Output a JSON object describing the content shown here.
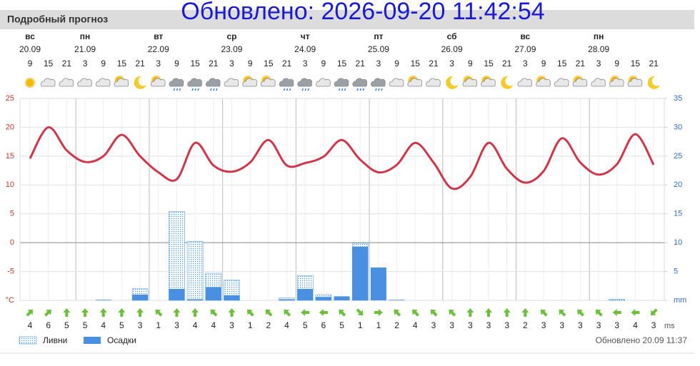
{
  "header": {
    "title": "Подробный прогноз",
    "updated_overlay": "Обновлено: 2026-09-20 11:42:54"
  },
  "days": [
    {
      "name": "вс",
      "date": "20.09"
    },
    {
      "name": "пн",
      "date": "21.09"
    },
    {
      "name": "вт",
      "date": "22.09"
    },
    {
      "name": "ср",
      "date": "23.09"
    },
    {
      "name": "чт",
      "date": "24.09"
    },
    {
      "name": "пт",
      "date": "25.09"
    },
    {
      "name": "сб",
      "date": "26.09"
    },
    {
      "name": "вс",
      "date": "27.09"
    },
    {
      "name": "пн",
      "date": "28.09"
    }
  ],
  "chart_data": {
    "type": "forecast",
    "categories": [
      9,
      15,
      21,
      3,
      9,
      15,
      21,
      3,
      9,
      15,
      21,
      3,
      9,
      15,
      21,
      3,
      9,
      15,
      21,
      3,
      9,
      15,
      21,
      3,
      9,
      15,
      21,
      3,
      9,
      15,
      21,
      3,
      9,
      15,
      21
    ],
    "temperature": {
      "color": "#d0364a",
      "values": [
        14.6,
        20,
        16,
        14,
        15,
        18.7,
        15,
        12.2,
        11,
        17.3,
        13.4,
        12.3,
        13.9,
        17.8,
        13.4,
        13.8,
        14.9,
        17.8,
        14.4,
        12.2,
        13.5,
        17.3,
        13.9,
        9.4,
        11.4,
        17.3,
        12.8,
        10.4,
        12.4,
        18.1,
        13.9,
        11.8,
        13.6,
        18.8,
        13.5
      ]
    },
    "series": [
      {
        "name": "Ливни",
        "color": "#3d8fe0",
        "axis": "y2",
        "values": [
          0,
          0,
          0,
          0,
          0,
          0,
          2.0,
          0,
          15.4,
          10.2,
          4.7,
          3.5,
          0,
          0,
          0.4,
          4.3,
          1.0,
          0,
          9.9,
          0,
          0,
          0,
          0,
          0,
          0,
          0,
          0,
          0,
          0,
          0,
          0,
          0,
          0.2,
          0,
          0
        ]
      },
      {
        "name": "Осадки",
        "color": "#4a90e2",
        "axis": "y2",
        "values": [
          0,
          0,
          0,
          0,
          0.1,
          0,
          1.0,
          0,
          2.0,
          0.2,
          2.3,
          0.9,
          0,
          0,
          0.2,
          2.0,
          0.6,
          0.7,
          9.3,
          5.7,
          0.1,
          0,
          0,
          0,
          0,
          0,
          0,
          0,
          0,
          0,
          0,
          0,
          0,
          0,
          0
        ]
      }
    ],
    "ylim": [
      -10,
      25
    ],
    "yticks": [
      {
        "value": -10,
        "label": "°C"
      },
      -5,
      0,
      5,
      10,
      15,
      20,
      25
    ],
    "y2lim": [
      0,
      35
    ],
    "y2ticks": [
      {
        "value": 0,
        "label": "mm"
      },
      5,
      10,
      15,
      20,
      25,
      30,
      35
    ],
    "grid": true,
    "wind": {
      "unit": "ms",
      "speeds": [
        4,
        6,
        5,
        5,
        4,
        5,
        3,
        1,
        3,
        4,
        4,
        3,
        1,
        2,
        4,
        5,
        6,
        5,
        1,
        1,
        2,
        4,
        3,
        3,
        3,
        3,
        3,
        2,
        3,
        3,
        3,
        3,
        3,
        4,
        3
      ],
      "directions_deg": [
        45,
        45,
        0,
        0,
        0,
        0,
        0,
        -45,
        0,
        0,
        -45,
        0,
        -45,
        -45,
        -45,
        -90,
        -90,
        -45,
        135,
        90,
        -45,
        -45,
        -45,
        -45,
        0,
        0,
        0,
        0,
        -45,
        -45,
        -45,
        -45,
        -90,
        -90,
        -135
      ]
    }
  },
  "footer": {
    "updated": "Обновлено 20.09 11:37"
  }
}
